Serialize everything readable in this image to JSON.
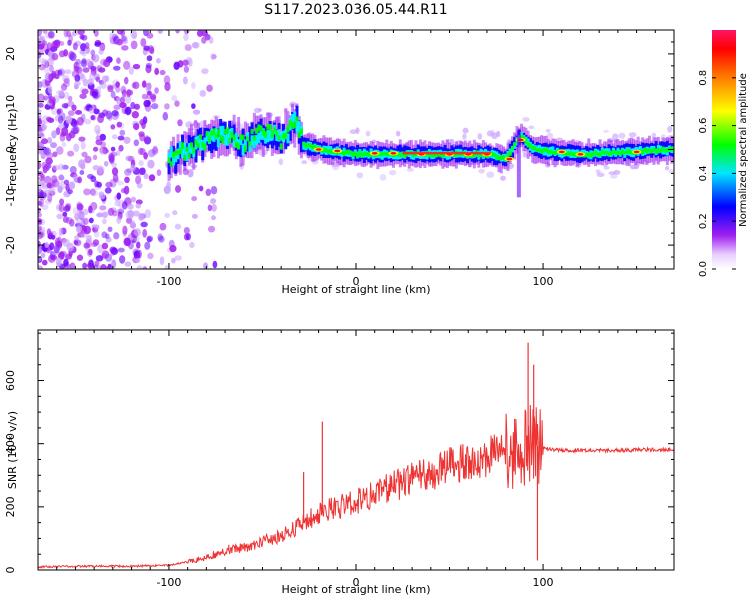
{
  "title": "S117.2023.036.05.44.R11",
  "chart_data": [
    {
      "type": "heatmap",
      "xlabel": "Height of straight line (km)",
      "ylabel": "Frequency (Hz)",
      "xlim": [
        -170,
        170
      ],
      "ylim": [
        -25,
        25
      ],
      "x_ticks": [
        -100,
        0,
        100
      ],
      "y_ticks": [
        -20,
        -10,
        0,
        10,
        20
      ],
      "colorbar": {
        "label": "Normalized spectral amplitude",
        "range": [
          0,
          1
        ],
        "ticks": [
          0.0,
          0.2,
          0.4,
          0.6,
          0.8
        ],
        "colormap": [
          "#ffffff",
          "#a020f0",
          "#0000ff",
          "#00ffff",
          "#00ff00",
          "#ffff00",
          "#ff0000",
          "#ff1493"
        ]
      },
      "ridge": [
        {
          "x": -100,
          "f": -2
        },
        {
          "x": -90,
          "f": 0
        },
        {
          "x": -80,
          "f": 2
        },
        {
          "x": -70,
          "f": 3
        },
        {
          "x": -60,
          "f": 1
        },
        {
          "x": -50,
          "f": 4
        },
        {
          "x": -40,
          "f": 2
        },
        {
          "x": -32,
          "f": 6
        },
        {
          "x": -28,
          "f": 1
        },
        {
          "x": -20,
          "f": 0
        },
        {
          "x": 0,
          "f": -1
        },
        {
          "x": 40,
          "f": -1
        },
        {
          "x": 72,
          "f": -1
        },
        {
          "x": 80,
          "f": -2
        },
        {
          "x": 88,
          "f": 3
        },
        {
          "x": 95,
          "f": 0
        },
        {
          "x": 120,
          "f": -1
        },
        {
          "x": 170,
          "f": 0
        }
      ],
      "grid": false
    },
    {
      "type": "line",
      "xlabel": "Height of straight line (km)",
      "ylabel": "SNR (10 * v/v)",
      "xlim": [
        -170,
        170
      ],
      "ylim": [
        0,
        760
      ],
      "x_ticks": [
        -100,
        0,
        100
      ],
      "y_ticks": [
        0,
        200,
        400,
        600
      ],
      "series": [
        {
          "color": "#ee3333",
          "x": [
            -170,
            -150,
            -120,
            -100,
            -90,
            -80,
            -70,
            -60,
            -50,
            -40,
            -30,
            -20,
            -10,
            0,
            10,
            20,
            30,
            40,
            50,
            60,
            70,
            80,
            85,
            90,
            95,
            100,
            110,
            130,
            150,
            170
          ],
          "y": [
            10,
            12,
            12,
            15,
            25,
            40,
            60,
            70,
            90,
            110,
            140,
            180,
            200,
            215,
            240,
            265,
            290,
            310,
            330,
            345,
            360,
            375,
            380,
            390,
            400,
            385,
            380,
            378,
            380,
            382
          ]
        }
      ],
      "spikes": [
        {
          "x": -68,
          "y": 80
        },
        {
          "x": -28,
          "y": 310
        },
        {
          "x": -18,
          "y": 470
        },
        {
          "x": 92,
          "y": 720
        },
        {
          "x": 95,
          "y": 650
        },
        {
          "x": 97,
          "y": 30
        }
      ],
      "grid": false
    }
  ]
}
